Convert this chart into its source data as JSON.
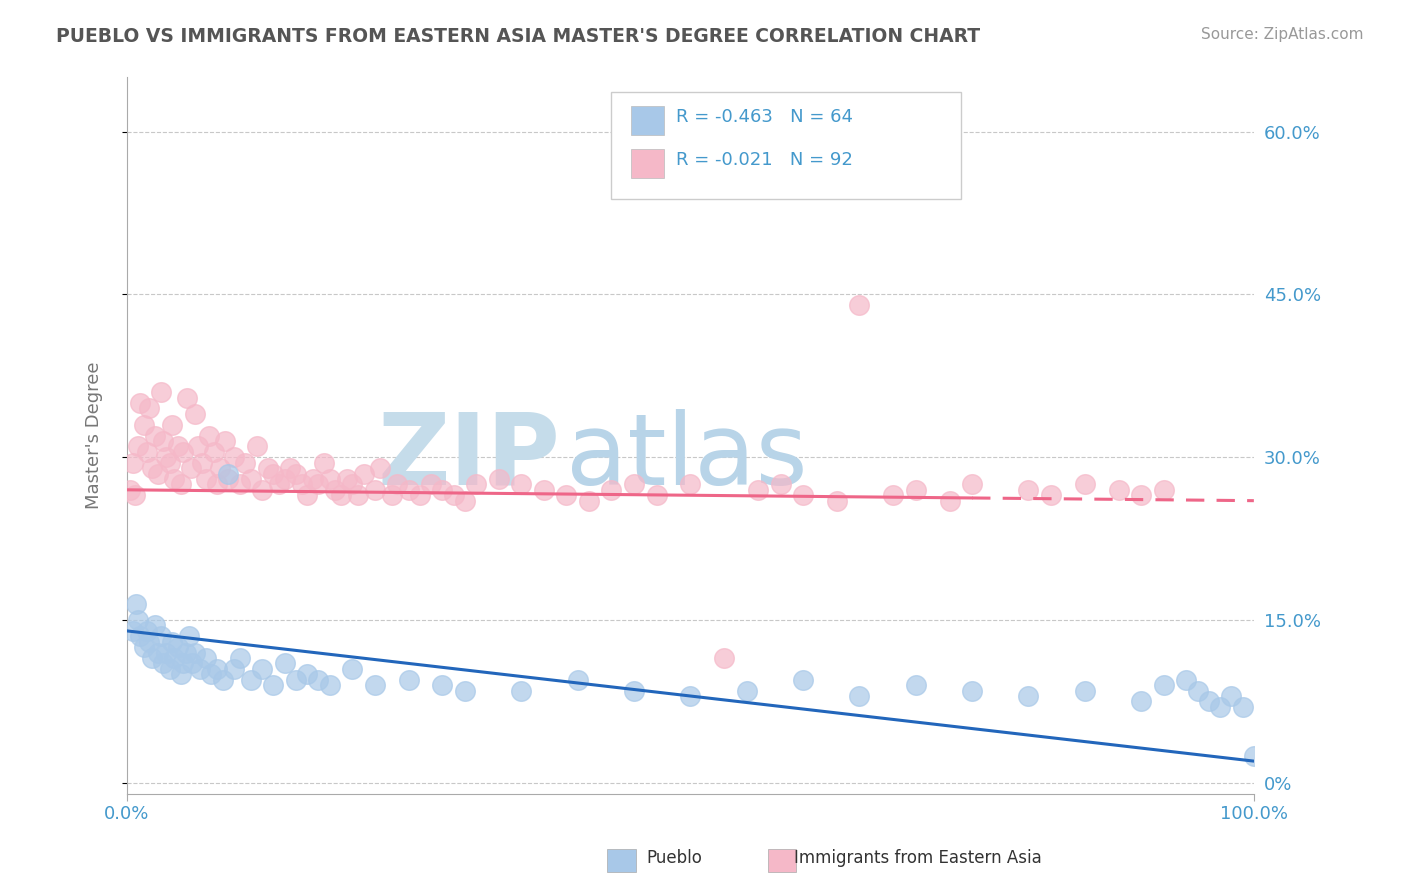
{
  "title": "PUEBLO VS IMMIGRANTS FROM EASTERN ASIA MASTER'S DEGREE CORRELATION CHART",
  "source_text": "Source: ZipAtlas.com",
  "ylabel": "Master's Degree",
  "y_tick_labels": [
    "0%",
    "15.0%",
    "30.0%",
    "45.0%",
    "60.0%"
  ],
  "y_tick_values": [
    0,
    15,
    30,
    45,
    60
  ],
  "xlim": [
    0,
    100
  ],
  "ylim": [
    -1,
    65
  ],
  "background_color": "#ffffff",
  "grid_color": "#c8c8c8",
  "watermark_zip": "ZIP",
  "watermark_atlas": "atlas",
  "watermark_color_zip": "#c5dcea",
  "watermark_color_atlas": "#b8d4e8",
  "series1_color": "#a8c8e8",
  "series2_color": "#f5b8c8",
  "trend1_color": "#2266bb",
  "trend2_color": "#ee6688",
  "title_color": "#555555",
  "axis_label_color": "#4499cc",
  "legend_color1": "#a8c8e8",
  "legend_color2": "#f5b8c8",
  "legend_text_color": "#4499cc",
  "pueblo_x": [
    0.5,
    0.8,
    1.0,
    1.2,
    1.5,
    1.8,
    2.0,
    2.2,
    2.5,
    2.8,
    3.0,
    3.2,
    3.5,
    3.8,
    4.0,
    4.2,
    4.5,
    4.8,
    5.0,
    5.2,
    5.5,
    5.8,
    6.0,
    6.5,
    7.0,
    7.5,
    8.0,
    8.5,
    9.0,
    9.5,
    10.0,
    11.0,
    12.0,
    13.0,
    14.0,
    15.0,
    16.0,
    17.0,
    18.0,
    20.0,
    22.0,
    25.0,
    28.0,
    30.0,
    35.0,
    40.0,
    45.0,
    50.0,
    55.0,
    60.0,
    65.0,
    70.0,
    75.0,
    80.0,
    85.0,
    90.0,
    92.0,
    94.0,
    95.0,
    96.0,
    97.0,
    98.0,
    99.0,
    100.0
  ],
  "pueblo_y": [
    14.0,
    16.5,
    15.0,
    13.5,
    12.5,
    14.0,
    13.0,
    11.5,
    14.5,
    12.0,
    13.5,
    11.0,
    12.0,
    10.5,
    13.0,
    11.5,
    12.5,
    10.0,
    11.0,
    12.0,
    13.5,
    11.0,
    12.0,
    10.5,
    11.5,
    10.0,
    10.5,
    9.5,
    28.5,
    10.5,
    11.5,
    9.5,
    10.5,
    9.0,
    11.0,
    9.5,
    10.0,
    9.5,
    9.0,
    10.5,
    9.0,
    9.5,
    9.0,
    8.5,
    8.5,
    9.5,
    8.5,
    8.0,
    8.5,
    9.5,
    8.0,
    9.0,
    8.5,
    8.0,
    8.5,
    7.5,
    9.0,
    9.5,
    8.5,
    7.5,
    7.0,
    8.0,
    7.0,
    2.5
  ],
  "eastern_asia_x": [
    0.3,
    0.5,
    0.7,
    1.0,
    1.2,
    1.5,
    1.8,
    2.0,
    2.2,
    2.5,
    2.8,
    3.0,
    3.2,
    3.5,
    3.8,
    4.0,
    4.2,
    4.5,
    4.8,
    5.0,
    5.3,
    5.7,
    6.0,
    6.3,
    6.7,
    7.0,
    7.3,
    7.7,
    8.0,
    8.3,
    8.7,
    9.0,
    9.5,
    10.0,
    10.5,
    11.0,
    11.5,
    12.0,
    12.5,
    13.0,
    13.5,
    14.0,
    14.5,
    15.0,
    15.5,
    16.0,
    16.5,
    17.0,
    17.5,
    18.0,
    18.5,
    19.0,
    19.5,
    20.0,
    20.5,
    21.0,
    22.0,
    22.5,
    23.5,
    24.0,
    25.0,
    26.0,
    27.0,
    28.0,
    29.0,
    30.0,
    31.0,
    33.0,
    35.0,
    37.0,
    39.0,
    41.0,
    43.0,
    45.0,
    47.0,
    50.0,
    53.0,
    56.0,
    58.0,
    60.0,
    63.0,
    65.0,
    68.0,
    70.0,
    73.0,
    75.0,
    80.0,
    82.0,
    85.0,
    88.0,
    90.0,
    92.0
  ],
  "eastern_asia_y": [
    27.0,
    29.5,
    26.5,
    31.0,
    35.0,
    33.0,
    30.5,
    34.5,
    29.0,
    32.0,
    28.5,
    36.0,
    31.5,
    30.0,
    29.5,
    33.0,
    28.0,
    31.0,
    27.5,
    30.5,
    35.5,
    29.0,
    34.0,
    31.0,
    29.5,
    28.0,
    32.0,
    30.5,
    27.5,
    29.0,
    31.5,
    28.0,
    30.0,
    27.5,
    29.5,
    28.0,
    31.0,
    27.0,
    29.0,
    28.5,
    27.5,
    28.0,
    29.0,
    28.5,
    27.5,
    26.5,
    28.0,
    27.5,
    29.5,
    28.0,
    27.0,
    26.5,
    28.0,
    27.5,
    26.5,
    28.5,
    27.0,
    29.0,
    26.5,
    27.5,
    27.0,
    26.5,
    27.5,
    27.0,
    26.5,
    26.0,
    27.5,
    28.0,
    27.5,
    27.0,
    26.5,
    26.0,
    27.0,
    27.5,
    26.5,
    27.5,
    11.5,
    27.0,
    27.5,
    26.5,
    26.0,
    44.0,
    26.5,
    27.0,
    26.0,
    27.5,
    27.0,
    26.5,
    27.5,
    27.0,
    26.5,
    27.0
  ],
  "trend1_start_y": 14.0,
  "trend1_end_y": 2.0,
  "trend2_start_y": 27.0,
  "trend2_end_y": 26.0
}
